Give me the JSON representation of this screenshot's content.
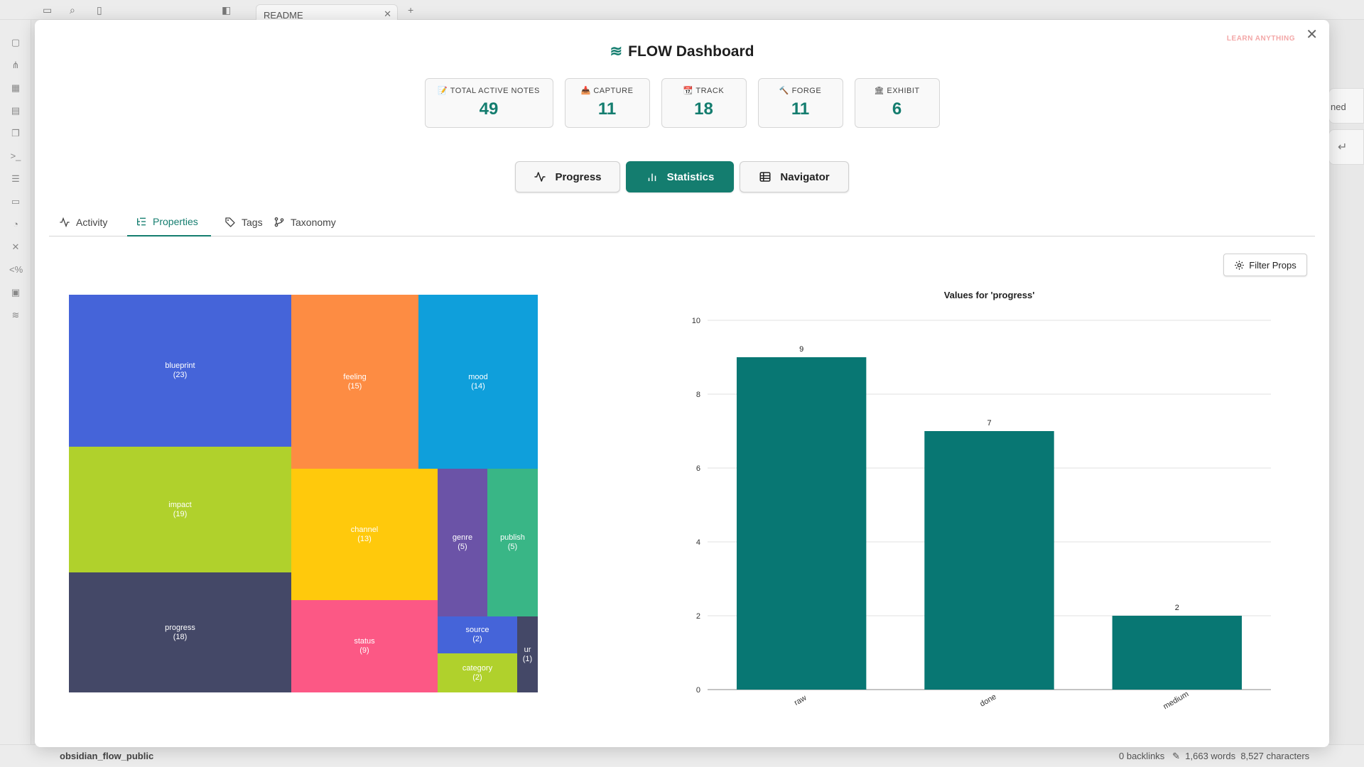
{
  "app": {
    "tab_title": "README",
    "vault_name": "obsidian_flow_public",
    "backlinks": "0 backlinks",
    "words": "1,663 words",
    "characters": "8,527 characters",
    "peek_text": "ned",
    "peek_return": "↵"
  },
  "modal": {
    "title": "FLOW Dashboard",
    "brand": "LEARN ANYTHING",
    "close": "✕"
  },
  "summary_cards": [
    {
      "label": "TOTAL ACTIVE NOTES",
      "value": "49",
      "icon": "📝"
    },
    {
      "label": "CAPTURE",
      "value": "11",
      "icon": "📥"
    },
    {
      "label": "TRACK",
      "value": "18",
      "icon": "📆"
    },
    {
      "label": "FORGE",
      "value": "11",
      "icon": "🔨"
    },
    {
      "label": "EXHIBIT",
      "value": "6",
      "icon": "🏛"
    }
  ],
  "view_buttons": [
    {
      "label": "Progress",
      "icon": "activity-icon",
      "active": false
    },
    {
      "label": "Statistics",
      "icon": "bar-chart-icon",
      "active": true
    },
    {
      "label": "Navigator",
      "icon": "table-icon",
      "active": false
    }
  ],
  "subtabs": [
    {
      "label": "Activity",
      "icon": "activity-icon",
      "active": false
    },
    {
      "label": "Properties",
      "icon": "list-tree-icon",
      "active": true
    },
    {
      "label": "Tags",
      "icon": "tag-icon",
      "active": false
    },
    {
      "label": "Taxonomy",
      "icon": "git-branch-icon",
      "active": false
    }
  ],
  "filter_button": "Filter Props",
  "treemap": [
    {
      "name": "blueprint",
      "count": 23,
      "color": "#4564d9"
    },
    {
      "name": "feeling",
      "count": 15,
      "color": "#fd8c43"
    },
    {
      "name": "mood",
      "count": 14,
      "color": "#0f9fdb"
    },
    {
      "name": "impact",
      "count": 19,
      "color": "#b0d12c"
    },
    {
      "name": "channel",
      "count": 13,
      "color": "#ffc90c"
    },
    {
      "name": "genre",
      "count": 5,
      "color": "#6b53a7"
    },
    {
      "name": "publish",
      "count": 5,
      "color": "#39b686"
    },
    {
      "name": "progress",
      "count": 18,
      "color": "#444867"
    },
    {
      "name": "status",
      "count": 9,
      "color": "#fc5885"
    },
    {
      "name": "source",
      "count": 2,
      "color": "#4564d9"
    },
    {
      "name": "category",
      "count": 2,
      "color": "#b0d12c"
    },
    {
      "name": "ur",
      "count": 1,
      "color": "#444867"
    }
  ],
  "chart_data": {
    "type": "bar",
    "title": "Values for 'progress'",
    "categories": [
      "raw",
      "done",
      "medium"
    ],
    "values": [
      9,
      7,
      2
    ],
    "ylim": [
      0,
      10
    ],
    "yticks": [
      0,
      2,
      4,
      6,
      8,
      10
    ],
    "color": "#087773",
    "grid": true
  }
}
